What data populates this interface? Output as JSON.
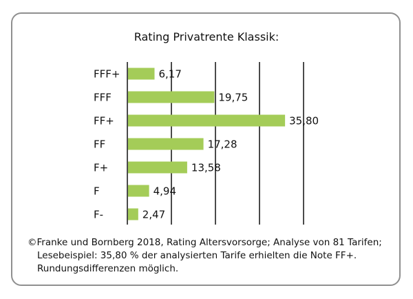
{
  "chart_data": {
    "type": "bar",
    "orientation": "horizontal",
    "title": "Rating Privatrente Klassik:",
    "categories": [
      "FFF+",
      "FFF",
      "FF+",
      "FF",
      "F+",
      "F",
      "F-"
    ],
    "values": [
      6.17,
      19.75,
      35.8,
      17.28,
      13.58,
      4.94,
      2.47
    ],
    "value_labels": [
      "6,17",
      "19,75",
      "35,80",
      "17,28",
      "13,58",
      "4,94",
      "2,47"
    ],
    "xlim": [
      0,
      40
    ],
    "grid": true,
    "bar_color": "#a4cc58",
    "gridline_color": "#4a4a4a"
  },
  "footer": {
    "copyright": "©Franke und Bornberg 2018, Rating Altersvorsorge; Analyse von 81 Tarifen;",
    "example": "Lesebeispiel: 35,80 % der analysierten Tarife erhielten die Note FF+.",
    "note": "Rundungsdifferenzen möglich."
  }
}
